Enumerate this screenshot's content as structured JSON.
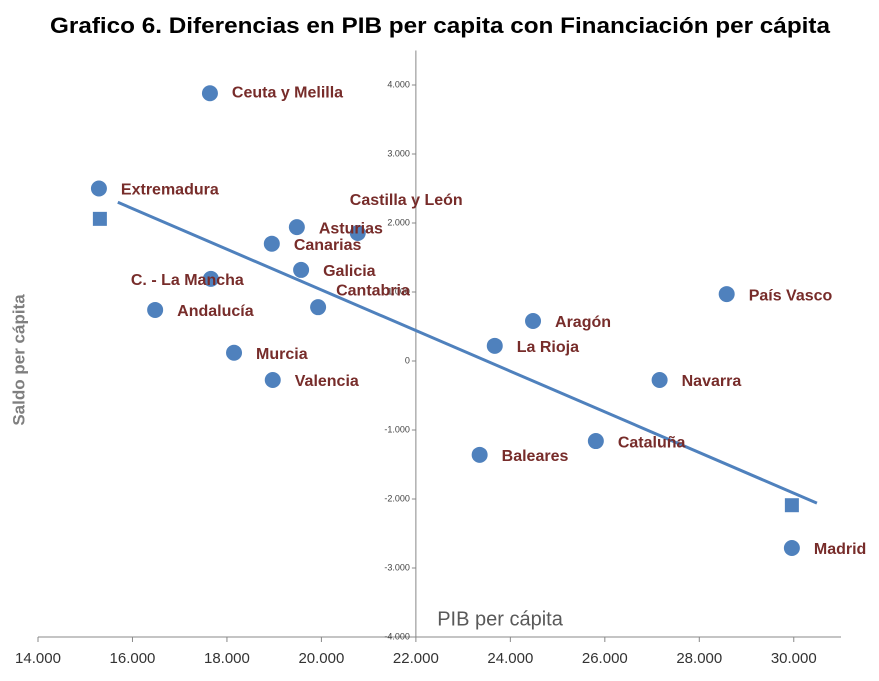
{
  "chart_data": {
    "type": "scatter",
    "title": "Grafico 6. Diferencias en  PIB per capita con Financiación per cápita",
    "xlabel": "PIB per cápita",
    "ylabel": "Saldo per cápita",
    "color": "#4f81bd",
    "label_color": "#772c2a",
    "points": [
      {
        "label": "Ceuta y Melilla",
        "x": 17640,
        "y": 3880
      },
      {
        "label": "Extremadura",
        "x": 15290,
        "y": 2500
      },
      {
        "label": "Castilla y León",
        "x": 20770,
        "y": 1855
      },
      {
        "label": "Asturias",
        "x": 19480,
        "y": 1940
      },
      {
        "label": "Canarias",
        "x": 18950,
        "y": 1700
      },
      {
        "label": "Galicia",
        "x": 19570,
        "y": 1320
      },
      {
        "label": "C. - La Mancha",
        "x": 17660,
        "y": 1190
      },
      {
        "label": "Cantabria",
        "x": 19930,
        "y": 780
      },
      {
        "label": "Andalucía",
        "x": 16480,
        "y": 740
      },
      {
        "label": "Murcia",
        "x": 18150,
        "y": 120
      },
      {
        "label": "Valencia",
        "x": 18970,
        "y": -275
      },
      {
        "label": "Aragón",
        "x": 24480,
        "y": 580
      },
      {
        "label": "La Rioja",
        "x": 23670,
        "y": 220
      },
      {
        "label": "País Vasco",
        "x": 28580,
        "y": 970
      },
      {
        "label": "Navarra",
        "x": 27160,
        "y": -275
      },
      {
        "label": "Cataluña",
        "x": 25810,
        "y": -1160
      },
      {
        "label": "Baleares",
        "x": 23350,
        "y": -1360
      },
      {
        "label": "Madrid",
        "x": 29960,
        "y": -2710
      }
    ],
    "squares": {
      "x": [
        15310,
        29960
      ],
      "y": [
        2060,
        -2090
      ]
    },
    "trend": {
      "x": [
        15690,
        30490
      ],
      "y": [
        2300,
        -2060
      ]
    },
    "xlim": [
      14000,
      31000
    ],
    "xticks": [
      {
        "value": 14000,
        "label": "14.000"
      },
      {
        "value": 16000,
        "label": "16.000"
      },
      {
        "value": 18000,
        "label": "18.000"
      },
      {
        "value": 20000,
        "label": "20.000"
      },
      {
        "value": 22000,
        "label": "22.000"
      },
      {
        "value": 24000,
        "label": "24.000"
      },
      {
        "value": 26000,
        "label": "26.000"
      },
      {
        "value": 28000,
        "label": "28.000"
      },
      {
        "value": 30000,
        "label": "30.000"
      }
    ],
    "ylim": [
      -4000,
      4500
    ],
    "yticks": [
      {
        "value": -4000,
        "label": "-4.000"
      },
      {
        "value": -3000,
        "label": "-3.000"
      },
      {
        "value": -2000,
        "label": "-2.000"
      },
      {
        "value": -1000,
        "label": "-1.000"
      },
      0,
      {
        "value": 1000,
        "label": "1.000"
      },
      {
        "value": 2000,
        "label": "2.000"
      },
      {
        "value": 3000,
        "label": "3.000"
      },
      {
        "value": 4000,
        "label": "4.000"
      }
    ],
    "y_axis_at": 22000
  }
}
